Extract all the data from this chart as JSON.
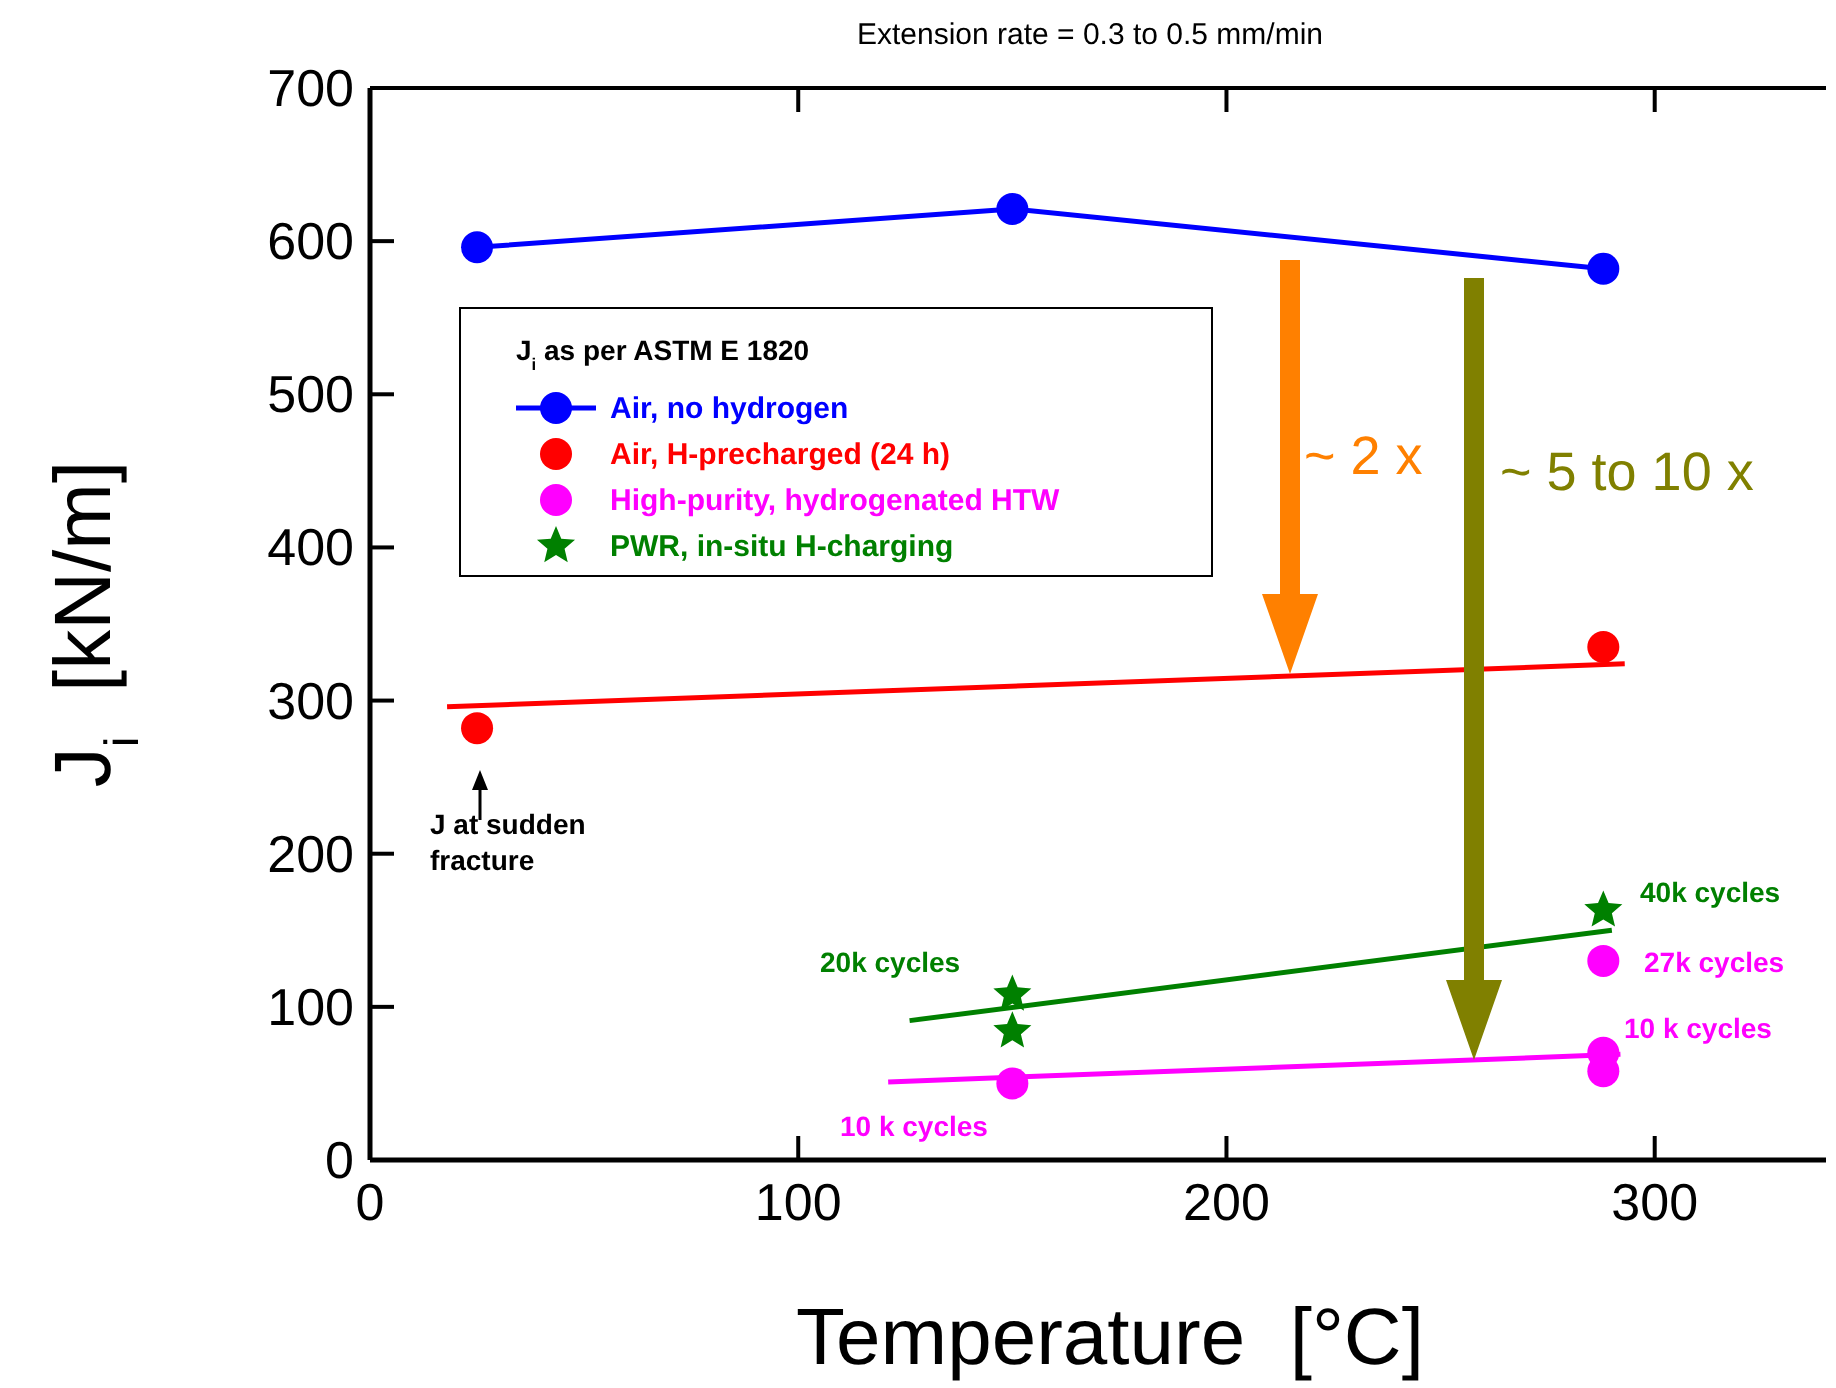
{
  "chart_data": {
    "type": "scatter",
    "title": "Extension rate = 0.3 to 0.5 mm/min",
    "xlabel": "Temperature  [°C]",
    "ylabel": "J$_{i}$  [kN/m]",
    "legend_title": "J$_{i}$ as per ASTM E 1820",
    "xlim": [
      0,
      340
    ],
    "xticks": [
      0,
      100,
      200,
      300
    ],
    "ylim": [
      0,
      700
    ],
    "yticks": [
      0,
      100,
      200,
      300,
      400,
      500,
      600,
      700
    ],
    "legend": "top left",
    "grid": false,
    "series": [
      {
        "name": "Air, no hydrogen",
        "type": "line",
        "marker": "circle",
        "color": "#0000ff",
        "x": [
          25,
          150,
          288
        ],
        "values": [
          596,
          621,
          582
        ]
      },
      {
        "name": "Air, H-precharged (24 h)",
        "marker": "circle",
        "color": "#ff0000",
        "x": [
          25,
          288
        ],
        "values": [
          282,
          335
        ]
      },
      {
        "name": "High-purity, hydrogenated HTW",
        "marker": "circle",
        "color": "#ff00ff",
        "x": [
          150,
          288,
          288,
          288
        ],
        "values": [
          50,
          58,
          70,
          130
        ]
      },
      {
        "name": "PWR, in-situ H-charging",
        "marker": "star",
        "color": "#008000",
        "x": [
          150,
          150,
          288
        ],
        "values": [
          84,
          108,
          163
        ]
      },
      {
        "type": "line",
        "marker": "none",
        "color": "#ff0000",
        "x": [
          18,
          293
        ],
        "values": [
          296,
          324
        ]
      },
      {
        "type": "line",
        "marker": "none",
        "color": "#ff00ff",
        "x": [
          121,
          292
        ],
        "values": [
          51,
          69
        ]
      },
      {
        "type": "line",
        "marker": "none",
        "color": "#008000",
        "x": [
          126,
          290
        ],
        "values": [
          91,
          150
        ]
      }
    ],
    "annotations": [
      "~ 2 x",
      "~ 5 to 10 x",
      "J at sudden fracture",
      "20k cycles",
      "10 k cycles",
      "40k cycles",
      "27k cycles",
      "10 k cycles"
    ]
  }
}
